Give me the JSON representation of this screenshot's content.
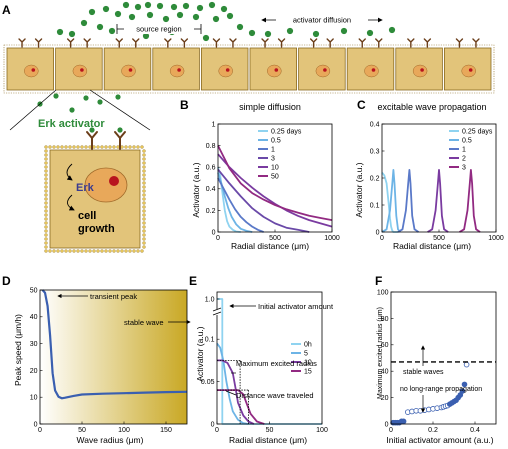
{
  "panels": {
    "A": {
      "label": "A",
      "source_region": "source region",
      "activator_diffusion": "activator diffusion",
      "erk_activator": "Erk activator",
      "erk": "Erk",
      "cell_growth_1": "cell",
      "cell_growth_2": "growth"
    },
    "B": {
      "label": "B",
      "title": "simple diffusion",
      "xlabel": "Radial distance (μm)",
      "ylabel": "Activator (a.u.)"
    },
    "C": {
      "label": "C",
      "title": "excitable wave propagation",
      "xlabel": "Radial distance (μm)",
      "ylabel": "Activator (a.u.)"
    },
    "D": {
      "label": "D",
      "xlabel": "Wave radius (μm)",
      "ylabel": "Peak speed (μm/h)",
      "ann_transient": "transient peak",
      "ann_stable": "stable wave"
    },
    "E": {
      "label": "E",
      "xlabel": "Radial distance (μm)",
      "ylabel": "Activator (a.u.)",
      "ann_initial": "Initial activator amount",
      "ann_max_radius": "Maximum excited radius",
      "ann_distance": "Distance wave traveled"
    },
    "F": {
      "label": "F",
      "xlabel": "Initial activator amount (a.u.)",
      "ylabel": "Maximum excited radius (μm)",
      "ann_stable": "stable waves",
      "ann_no_prop": "no long-range propagation"
    }
  },
  "colors": {
    "cell_fill": "#e2c47a",
    "membrane": "#8a6a20",
    "receptor": "#6b3e1a",
    "activator_dot": "#2e8b3a",
    "nucleus": "#e8a85a",
    "nucleolus": "#b8141e",
    "erk_text": "#3b3b8f",
    "erk_activator_text": "#2e8b3a",
    "curve_blue": "#3a5fb0"
  },
  "chart_data": [
    {
      "id": "B",
      "type": "line",
      "xlim": [
        0,
        1000
      ],
      "ylim": [
        0,
        1
      ],
      "xticks": [
        0,
        500,
        1000
      ],
      "yticks": [
        0,
        0.2,
        0.4,
        0.6,
        0.8,
        1
      ],
      "xtick_labels": [
        "0",
        "500",
        "1000"
      ],
      "ytick_labels": [
        "0",
        "0.2",
        "0.4",
        "0.6",
        "0.8",
        "1"
      ],
      "legend_position": "top-right",
      "series": [
        {
          "name": "0.25 days",
          "color": "#8fd3f0",
          "x": [
            0,
            20,
            40,
            60,
            80,
            100,
            130,
            160,
            200
          ],
          "y": [
            0.6,
            0.52,
            0.35,
            0.2,
            0.1,
            0.05,
            0.02,
            0.005,
            0
          ]
        },
        {
          "name": "0.5",
          "color": "#6db4e6",
          "x": [
            0,
            30,
            60,
            90,
            120,
            160,
            200,
            250,
            300
          ],
          "y": [
            0.55,
            0.45,
            0.33,
            0.22,
            0.14,
            0.07,
            0.03,
            0.01,
            0
          ]
        },
        {
          "name": "1",
          "color": "#5a79c8",
          "x": [
            0,
            50,
            100,
            150,
            200,
            250,
            300,
            350,
            400
          ],
          "y": [
            0.5,
            0.4,
            0.3,
            0.21,
            0.14,
            0.09,
            0.05,
            0.02,
            0
          ]
        },
        {
          "name": "3",
          "color": "#6a49a8",
          "x": [
            0,
            100,
            200,
            300,
            400,
            500,
            600,
            700,
            800
          ],
          "y": [
            0.58,
            0.45,
            0.33,
            0.22,
            0.14,
            0.08,
            0.04,
            0.02,
            0
          ]
        },
        {
          "name": "10",
          "color": "#7a3ba0",
          "x": [
            0,
            100,
            200,
            300,
            400,
            500,
            600,
            700,
            800,
            900,
            1000
          ],
          "y": [
            0.72,
            0.6,
            0.5,
            0.41,
            0.33,
            0.26,
            0.2,
            0.15,
            0.11,
            0.08,
            0.05
          ]
        },
        {
          "name": "50",
          "color": "#922a82",
          "x": [
            0,
            100,
            200,
            300,
            400,
            500,
            600,
            700,
            800,
            900,
            1000
          ],
          "y": [
            0.8,
            0.59,
            0.45,
            0.36,
            0.3,
            0.25,
            0.21,
            0.18,
            0.15,
            0.13,
            0.11
          ]
        }
      ]
    },
    {
      "id": "C",
      "type": "line",
      "xlim": [
        0,
        1000
      ],
      "ylim": [
        0,
        0.4
      ],
      "xticks": [
        0,
        500,
        1000
      ],
      "yticks": [
        0,
        0.1,
        0.2,
        0.3,
        0.4
      ],
      "xtick_labels": [
        "0",
        "500",
        "1000"
      ],
      "ytick_labels": [
        "0",
        "0.1",
        "0.2",
        "0.3",
        "0.4"
      ],
      "legend_position": "top-right",
      "series": [
        {
          "name": "0.25 days",
          "color": "#8fd3f0",
          "x": [
            0,
            20,
            40,
            60,
            70,
            80,
            90,
            100,
            120,
            140
          ],
          "y": [
            0.22,
            0.21,
            0.18,
            0.1,
            0.05,
            0.02,
            0.005,
            0,
            0,
            0
          ]
        },
        {
          "name": "0.5",
          "color": "#6db4e6",
          "x": [
            0,
            40,
            70,
            90,
            100,
            110,
            125,
            140,
            160
          ],
          "y": [
            0,
            0.01,
            0.08,
            0.18,
            0.23,
            0.18,
            0.06,
            0.01,
            0
          ]
        },
        {
          "name": "1",
          "color": "#5a79c8",
          "x": [
            140,
            180,
            210,
            230,
            240,
            250,
            265,
            285,
            320
          ],
          "y": [
            0,
            0.01,
            0.08,
            0.18,
            0.23,
            0.18,
            0.06,
            0.01,
            0
          ]
        },
        {
          "name": "2",
          "color": "#7a3ba0",
          "x": [
            400,
            440,
            470,
            490,
            500,
            510,
            525,
            545,
            580
          ],
          "y": [
            0,
            0.01,
            0.08,
            0.18,
            0.23,
            0.18,
            0.06,
            0.01,
            0
          ]
        },
        {
          "name": "3",
          "color": "#922a82",
          "x": [
            680,
            720,
            750,
            770,
            780,
            790,
            805,
            825,
            860
          ],
          "y": [
            0,
            0.01,
            0.08,
            0.18,
            0.23,
            0.18,
            0.06,
            0.01,
            0
          ]
        }
      ]
    },
    {
      "id": "D",
      "type": "line",
      "xlim": [
        0,
        175
      ],
      "ylim": [
        0,
        50
      ],
      "xticks": [
        0,
        50,
        100,
        150
      ],
      "yticks": [
        0,
        10,
        20,
        30,
        40,
        50
      ],
      "xtick_labels": [
        "0",
        "50",
        "100",
        "150"
      ],
      "ytick_labels": [
        "0",
        "10",
        "20",
        "30",
        "40",
        "50"
      ],
      "background_gradient": [
        "#ffffff",
        "#c9a824"
      ],
      "series": [
        {
          "name": "",
          "color": "#3a5fb0",
          "x": [
            3,
            6,
            9,
            12,
            15,
            18,
            22,
            26,
            30,
            40,
            50,
            75,
            100,
            125,
            150,
            175
          ],
          "y": [
            50,
            49,
            44,
            33,
            19,
            12.5,
            10.2,
            9.6,
            9.8,
            10.5,
            11,
            11.3,
            11.5,
            11.7,
            11.9,
            12
          ]
        }
      ]
    },
    {
      "id": "E",
      "type": "line",
      "xlim": [
        0,
        100
      ],
      "ylim": [
        0,
        1.0
      ],
      "broken_axis": true,
      "xticks": [
        0,
        50,
        100
      ],
      "yticks": [
        0,
        0.05,
        0.1,
        1.0
      ],
      "xtick_labels": [
        "0",
        "50",
        "100"
      ],
      "ytick_labels": [
        "0",
        "0.05",
        "0.1",
        "1.0"
      ],
      "legend_position": "right",
      "series": [
        {
          "name": "0h",
          "color": "#8fd3f0",
          "x": [
            0,
            5,
            5,
            5,
            100
          ],
          "y": [
            1.0,
            1.0,
            1.0,
            0,
            0
          ]
        },
        {
          "name": "5",
          "color": "#6db4e6",
          "x": [
            0,
            3,
            6,
            9,
            12,
            15,
            20,
            25,
            30
          ],
          "y": [
            0.095,
            0.09,
            0.075,
            0.05,
            0.03,
            0.015,
            0.005,
            0.001,
            0
          ]
        },
        {
          "name": "10",
          "color": "#7a3ba0",
          "x": [
            0,
            5,
            10,
            15,
            18,
            20,
            25,
            30,
            35
          ],
          "y": [
            0.075,
            0.075,
            0.072,
            0.06,
            0.04,
            0.025,
            0.01,
            0.003,
            0
          ]
        },
        {
          "name": "15",
          "color": "#922a82",
          "x": [
            0,
            10,
            15,
            20,
            25,
            28,
            32,
            38,
            45
          ],
          "y": [
            0.04,
            0.04,
            0.04,
            0.04,
            0.035,
            0.025,
            0.012,
            0.003,
            0
          ]
        }
      ]
    },
    {
      "id": "F",
      "type": "scatter",
      "xlim": [
        0,
        0.5
      ],
      "ylim": [
        0,
        100
      ],
      "xticks": [
        0,
        0.2,
        0.4
      ],
      "yticks": [
        0,
        20,
        40,
        60,
        80,
        100
      ],
      "xtick_labels": [
        "0",
        "0.2",
        "0.4"
      ],
      "ytick_labels": [
        "0",
        "20",
        "40",
        "60",
        "80",
        "100"
      ],
      "threshold_line_y": 47,
      "series": [
        {
          "name": "",
          "color": "#3a5fb0",
          "x": [
            0.01,
            0.02,
            0.03,
            0.04,
            0.05,
            0.06,
            0.08,
            0.1,
            0.12,
            0.14,
            0.16,
            0.18,
            0.2,
            0.22,
            0.24,
            0.25,
            0.26,
            0.27,
            0.28,
            0.29,
            0.3,
            0.31,
            0.32,
            0.33,
            0.34,
            0.35,
            0.36
          ],
          "y": [
            1,
            1,
            1,
            1,
            2,
            2,
            9,
            9.5,
            10,
            10,
            10.5,
            11,
            11.5,
            12,
            12.5,
            13,
            13.5,
            14,
            15,
            16,
            17,
            18,
            20,
            22,
            25,
            30,
            45
          ],
          "filled": [
            true,
            true,
            true,
            true,
            true,
            true,
            false,
            false,
            false,
            false,
            false,
            false,
            false,
            false,
            false,
            false,
            false,
            false,
            true,
            true,
            true,
            true,
            true,
            true,
            true,
            true,
            false
          ]
        }
      ]
    }
  ]
}
